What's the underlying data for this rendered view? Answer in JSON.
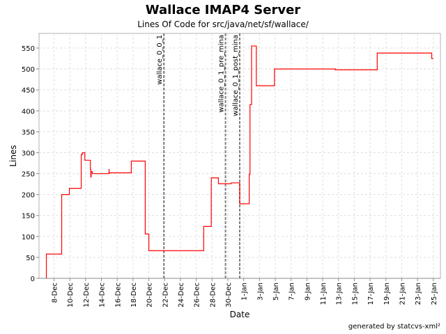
{
  "chart_data": {
    "type": "line",
    "title": "Wallace IMAP4 Server",
    "subtitle": "Lines Of Code for src/java/net/sf/wallace/",
    "xlabel": "Date",
    "ylabel": "Lines",
    "x_unit": "days since 8-Dec",
    "xlim": [
      -1.9,
      48.9
    ],
    "ylim": [
      0,
      585
    ],
    "yticks": [
      0,
      50,
      100,
      150,
      200,
      250,
      300,
      350,
      400,
      450,
      500,
      550
    ],
    "xticks": [
      {
        "day": 0,
        "label": "8-Dec"
      },
      {
        "day": 2,
        "label": "10-Dec"
      },
      {
        "day": 4,
        "label": "12-Dec"
      },
      {
        "day": 6,
        "label": "14-Dec"
      },
      {
        "day": 8,
        "label": "16-Dec"
      },
      {
        "day": 10,
        "label": "18-Dec"
      },
      {
        "day": 12,
        "label": "20-Dec"
      },
      {
        "day": 14,
        "label": "22-Dec"
      },
      {
        "day": 16,
        "label": "24-Dec"
      },
      {
        "day": 18,
        "label": "26-Dec"
      },
      {
        "day": 20,
        "label": "28-Dec"
      },
      {
        "day": 22,
        "label": "30-Dec"
      },
      {
        "day": 24,
        "label": "1-Jan"
      },
      {
        "day": 26,
        "label": "3-Jan"
      },
      {
        "day": 28,
        "label": "5-Jan"
      },
      {
        "day": 30,
        "label": "7-Jan"
      },
      {
        "day": 32,
        "label": "9-Jan"
      },
      {
        "day": 34,
        "label": "11-Jan"
      },
      {
        "day": 36,
        "label": "13-Jan"
      },
      {
        "day": 38,
        "label": "15-Jan"
      },
      {
        "day": 40,
        "label": "17-Jan"
      },
      {
        "day": 42,
        "label": "19-Jan"
      },
      {
        "day": 44,
        "label": "21-Jan"
      },
      {
        "day": 46,
        "label": "23-Jan"
      },
      {
        "day": 48,
        "label": "25-Jan"
      }
    ],
    "grid": true,
    "series": [
      {
        "name": "Lines",
        "color": "#ff0000",
        "step": true,
        "points": [
          [
            -0.97,
            0
          ],
          [
            -0.97,
            58
          ],
          [
            0.97,
            200
          ],
          [
            1.94,
            215
          ],
          [
            3.44,
            296
          ],
          [
            3.6,
            300
          ],
          [
            3.9,
            282
          ],
          [
            4.6,
            260
          ],
          [
            4.65,
            242
          ],
          [
            4.7,
            255
          ],
          [
            4.85,
            250
          ],
          [
            6.96,
            260
          ],
          [
            6.97,
            252
          ],
          [
            9.78,
            280
          ],
          [
            11.54,
            106
          ],
          [
            12.0,
            66
          ],
          [
            18.94,
            124
          ],
          [
            19.9,
            240
          ],
          [
            20.8,
            226
          ],
          [
            22.4,
            228
          ],
          [
            23.5,
            178
          ],
          [
            24.7,
            248
          ],
          [
            24.8,
            415
          ],
          [
            25.0,
            555
          ],
          [
            25.6,
            460
          ],
          [
            27.9,
            500
          ],
          [
            35.6,
            498
          ],
          [
            40.9,
            538
          ],
          [
            47.8,
            525
          ],
          [
            48.0,
            525
          ]
        ]
      }
    ],
    "markers": [
      {
        "day": 13.9,
        "label": "wallace_0_0_1"
      },
      {
        "day": 21.7,
        "label": "wallace_0_1_pre_mina"
      },
      {
        "day": 23.5,
        "label": "wallace_0_1_post_mina"
      }
    ]
  },
  "footer": "generated by statcvs-xml²"
}
